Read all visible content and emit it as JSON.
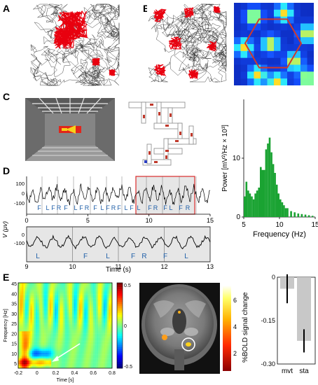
{
  "panel_labels": [
    "A",
    "B",
    "C",
    "D",
    "E"
  ],
  "colors": {
    "trajectory": "#333333",
    "spikes": "#e8000f",
    "hexagon": "#d0392b",
    "spectrum_bar": "#1aa332",
    "rat_lfp_letters": "#1f5fa8",
    "highlight_box": "#d92b2b",
    "bold_bar": "#c8c8c8"
  },
  "panel_d": {
    "top_ticks": [
      "0",
      "5",
      "10",
      "15"
    ],
    "top_yticks": [
      "-100",
      "0",
      "100"
    ],
    "top_letters": [
      "F",
      "L",
      "F",
      "R",
      "F",
      "L",
      "F",
      "R",
      "F",
      "L",
      "F",
      "R",
      "F",
      "L",
      "F",
      "L",
      "F",
      "R",
      "F",
      "L",
      "F",
      "R"
    ],
    "bottom_ticks": [
      "9",
      "10",
      "11",
      "12",
      "13"
    ],
    "bottom_yticks": [
      "-100",
      "0"
    ],
    "bottom_letters": [
      "L",
      "F",
      "L",
      "F",
      "R",
      "F",
      "L"
    ],
    "ylabel": "V (μv)",
    "xlabel": "Time (s)"
  },
  "panel_e": {
    "tf_yticks": [
      "45",
      "40",
      "35",
      "30",
      "25",
      "20",
      "15",
      "10",
      "5"
    ],
    "tf_xticks": [
      "-0.2",
      "0",
      "0.2",
      "0.4",
      "0.6",
      "0.8"
    ],
    "tf_ylabel": "Frequency [Hz]",
    "tf_xlabel": "Time [s]",
    "cbar_ticks": [
      "0.5",
      "0",
      "-0.5"
    ],
    "mri_cbar_ticks": [
      "6",
      "4",
      "2"
    ],
    "mri_cbar_label": "%BOLD signal change"
  },
  "chart_data": [
    {
      "type": "bar",
      "id": "power-spectrum",
      "xlabel": "Frequency (Hz)",
      "ylabel": "Power [mV²/Hz × 10³]",
      "xticks": [
        "5",
        "10",
        "15"
      ],
      "yticks": [
        "0",
        "10"
      ],
      "xlim": [
        5,
        15
      ],
      "ylim": [
        0,
        20
      ],
      "x": [
        5.0,
        5.25,
        5.5,
        5.75,
        6.0,
        6.25,
        6.5,
        6.75,
        7.0,
        7.25,
        7.5,
        7.75,
        8.0,
        8.25,
        8.5,
        8.75,
        9.0,
        9.25,
        9.5,
        9.75,
        10.0,
        10.25,
        10.5,
        10.75,
        11.0,
        11.5,
        12.0,
        12.5,
        13.0,
        13.5,
        14.0,
        14.5
      ],
      "values": [
        3.5,
        6.0,
        4.5,
        4.0,
        3.5,
        3.0,
        4.0,
        4.5,
        5.0,
        8.5,
        8.0,
        8.0,
        11.5,
        12.5,
        13.5,
        11.0,
        9.0,
        7.5,
        5.5,
        4.0,
        3.0,
        2.5,
        2.0,
        1.5,
        1.5,
        1.0,
        0.8,
        0.6,
        0.5,
        0.4,
        0.3,
        0.2
      ]
    },
    {
      "type": "bar",
      "id": "bold-bars",
      "categories": [
        "mvt",
        "sta"
      ],
      "values": [
        -0.04,
        -0.22
      ],
      "errors": [
        0.05,
        0.04
      ],
      "yticks": [
        "0",
        "-0.15",
        "-0.30"
      ],
      "ylim": [
        -0.3,
        0
      ]
    }
  ]
}
